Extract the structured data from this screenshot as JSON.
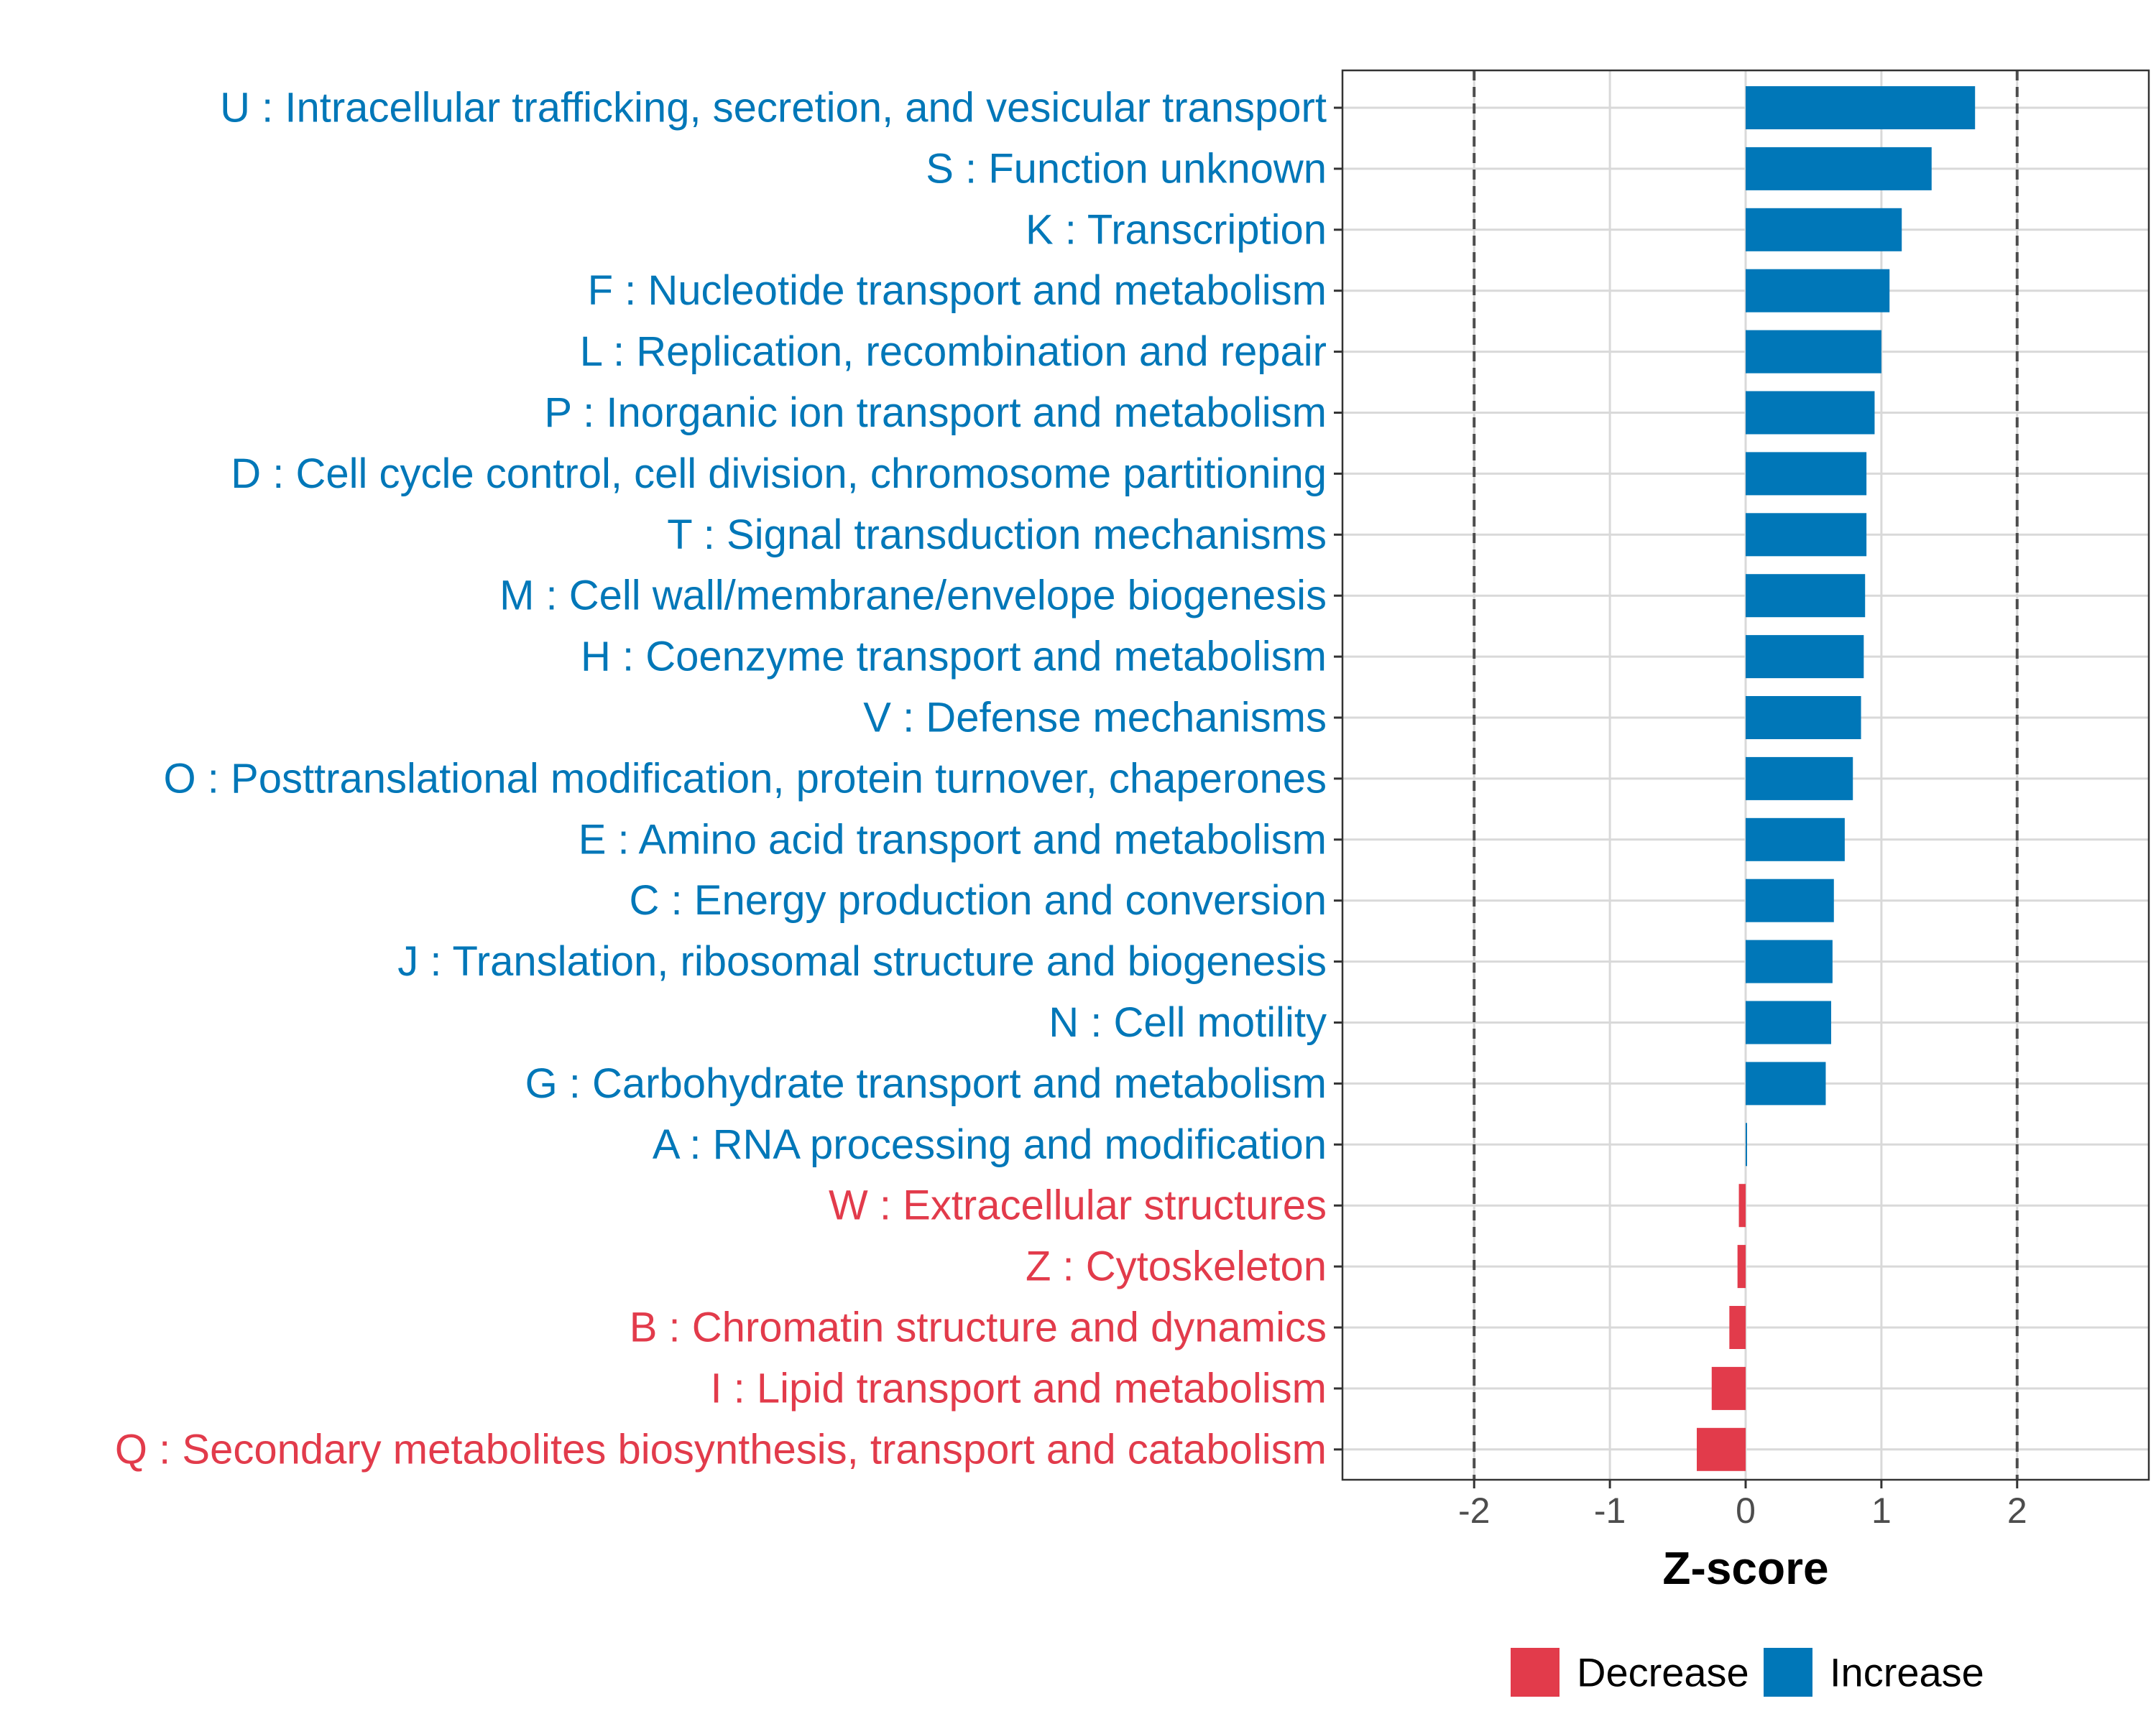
{
  "colors": {
    "increase": "#0077b8",
    "decrease": "#e23b4b",
    "grid": "#d9d9d9",
    "refline": "#4d4d4d",
    "panel_border": "#333333"
  },
  "chart_data": {
    "type": "bar",
    "orientation": "horizontal",
    "xlabel": "Z-score",
    "xlim": [
      -2.97,
      2.97
    ],
    "x_ticks": [
      -2,
      -1,
      0,
      1,
      2
    ],
    "x_tick_labels": [
      "-2",
      "-1",
      "0",
      "1",
      "2"
    ],
    "reference_lines": [
      -2,
      2
    ],
    "categories": [
      "U : Intracellular trafficking, secretion, and vesicular transport",
      "S : Function unknown",
      "K : Transcription",
      "F : Nucleotide transport and metabolism",
      "L : Replication, recombination and repair",
      "P : Inorganic ion transport and metabolism",
      "D : Cell cycle control, cell division, chromosome partitioning",
      "T : Signal transduction mechanisms",
      "M : Cell wall/membrane/envelope biogenesis",
      "H : Coenzyme transport and metabolism",
      "V : Defense mechanisms",
      "O : Posttranslational modification, protein turnover, chaperones",
      "E : Amino acid transport and metabolism",
      "C : Energy production and conversion",
      "J : Translation, ribosomal structure and biogenesis",
      "N : Cell motility",
      "G : Carbohydrate transport and metabolism",
      "A : RNA processing and modification",
      "W : Extracellular structures",
      "Z : Cytoskeleton",
      "B : Chromatin structure and dynamics",
      "I : Lipid transport and metabolism",
      "Q : Secondary metabolites biosynthesis, transport and catabolism"
    ],
    "values": [
      1.69,
      1.37,
      1.15,
      1.06,
      1.0,
      0.95,
      0.89,
      0.89,
      0.88,
      0.87,
      0.85,
      0.79,
      0.73,
      0.65,
      0.64,
      0.63,
      0.59,
      0.01,
      -0.05,
      -0.06,
      -0.12,
      -0.25,
      -0.36
    ],
    "direction": [
      "Increase",
      "Increase",
      "Increase",
      "Increase",
      "Increase",
      "Increase",
      "Increase",
      "Increase",
      "Increase",
      "Increase",
      "Increase",
      "Increase",
      "Increase",
      "Increase",
      "Increase",
      "Increase",
      "Increase",
      "Increase",
      "Decrease",
      "Decrease",
      "Decrease",
      "Decrease",
      "Decrease"
    ],
    "legend": {
      "position": "bottom",
      "items": [
        {
          "label": "Decrease",
          "color": "#e23b4b"
        },
        {
          "label": "Increase",
          "color": "#0077b8"
        }
      ]
    },
    "grid": true
  }
}
